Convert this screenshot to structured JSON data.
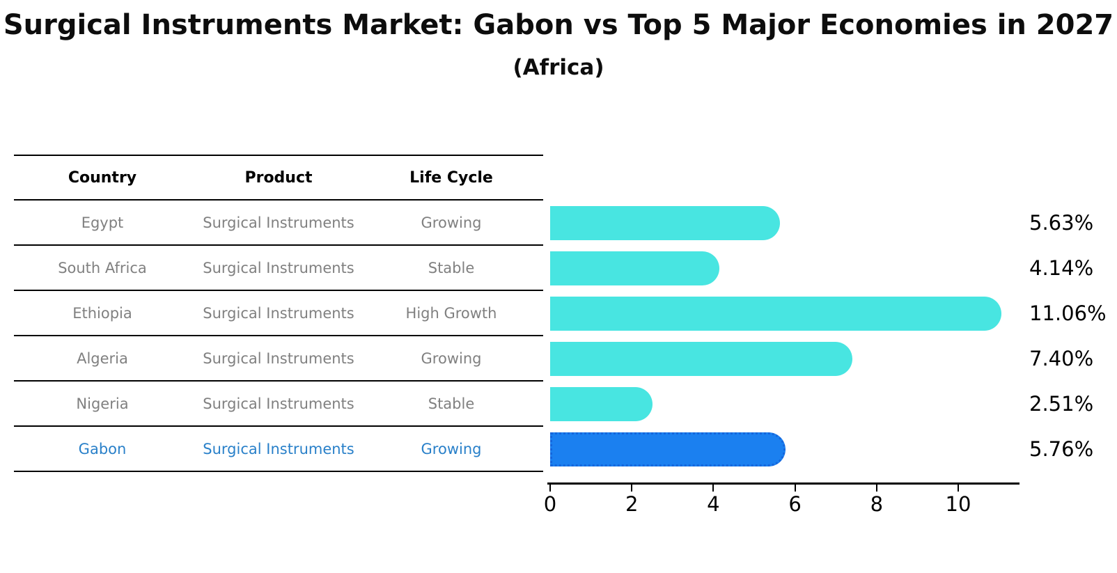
{
  "title": "Surgical Instruments Market: Gabon vs Top 5 Major Economies in 2027",
  "subtitle": "(Africa)",
  "table": {
    "headers": [
      "Country",
      "Product",
      "Life Cycle"
    ],
    "rows": [
      {
        "country": "Egypt",
        "product": "Surgical Instruments",
        "life_cycle": "Growing",
        "highlight": false
      },
      {
        "country": "South Africa",
        "product": "Surgical Instruments",
        "life_cycle": "Stable",
        "highlight": false
      },
      {
        "country": "Ethiopia",
        "product": "Surgical Instruments",
        "life_cycle": "High Growth",
        "highlight": false
      },
      {
        "country": "Algeria",
        "product": "Surgical Instruments",
        "life_cycle": "Growing",
        "highlight": false
      },
      {
        "country": "Nigeria",
        "product": "Surgical Instruments",
        "life_cycle": "Stable",
        "highlight": false
      },
      {
        "country": "Gabon",
        "product": "Surgical Instruments",
        "life_cycle": "Growing",
        "highlight": true
      }
    ]
  },
  "chart_data": {
    "type": "bar",
    "orientation": "horizontal",
    "title": "Surgical Instruments Market: Gabon vs Top 5 Major Economies in 2027",
    "subtitle": "(Africa)",
    "categories": [
      "Egypt",
      "South Africa",
      "Ethiopia",
      "Algeria",
      "Nigeria",
      "Gabon"
    ],
    "values": [
      5.63,
      4.14,
      11.06,
      7.4,
      2.51,
      5.76
    ],
    "value_labels": [
      "5.63%",
      "4.14%",
      "11.06%",
      "7.40%",
      "2.51%",
      "5.76%"
    ],
    "highlight_index": 5,
    "highlight_category": "Gabon",
    "xlim": [
      0,
      11.5
    ],
    "xticks": [
      "0",
      "2",
      "4",
      "6",
      "8",
      "10"
    ],
    "grid": false,
    "colors": {
      "bar": "#48E5E1",
      "highlight_bar": "#1B80F0",
      "highlight_border": "#1566DC",
      "label_text": "#000000",
      "table_text": "#808080",
      "highlight_text": "#2980C9"
    }
  }
}
